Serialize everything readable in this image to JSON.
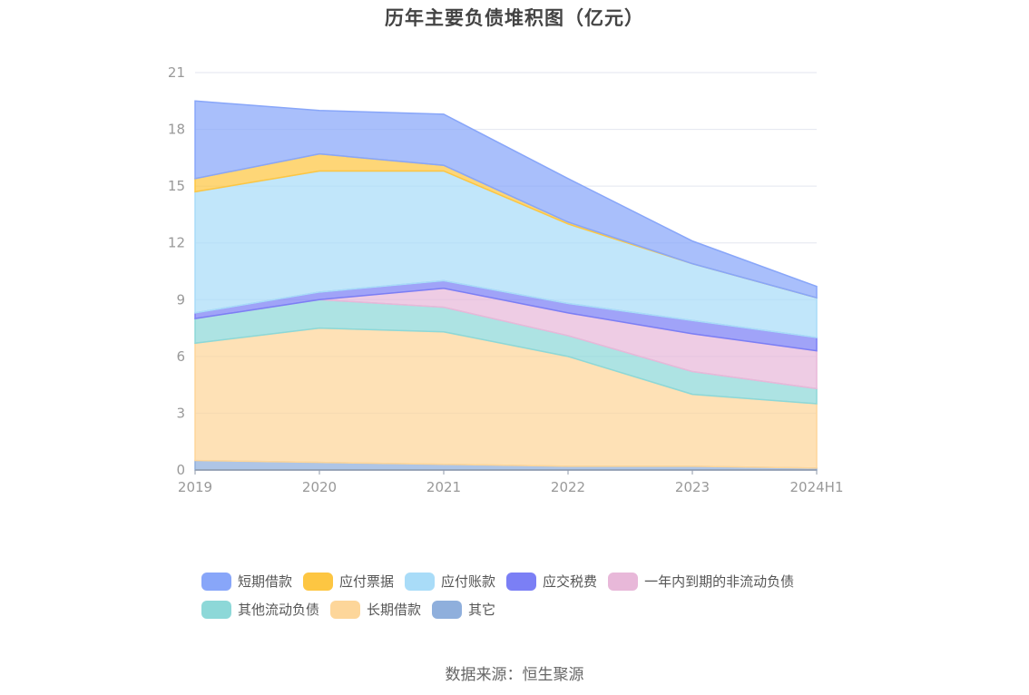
{
  "chart_data": {
    "type": "area",
    "stacked": true,
    "title": "历年主要负债堆积图（亿元）",
    "x": [
      "2019",
      "2020",
      "2021",
      "2022",
      "2023",
      "2024H1"
    ],
    "ylim": [
      0,
      21
    ],
    "yticks": [
      0,
      3,
      6,
      9,
      12,
      15,
      18,
      21
    ],
    "grid": true,
    "legend_position": "bottom",
    "series": [
      {
        "name": "其它",
        "color": "#8fafdc",
        "values": [
          0.5,
          0.4,
          0.3,
          0.2,
          0.2,
          0.1
        ]
      },
      {
        "name": "长期借款",
        "color": "#fdd69a",
        "values": [
          6.2,
          7.1,
          7.0,
          5.8,
          3.8,
          3.4
        ]
      },
      {
        "name": "其他流动负债",
        "color": "#8dd8d8",
        "values": [
          1.3,
          1.5,
          1.3,
          1.1,
          1.2,
          0.8
        ]
      },
      {
        "name": "一年内到期的非流动负债",
        "color": "#e8b8d9",
        "values": [
          0.0,
          0.0,
          1.0,
          1.2,
          2.0,
          2.0
        ]
      },
      {
        "name": "应交税费",
        "color": "#7b7ff5",
        "values": [
          0.3,
          0.4,
          0.4,
          0.5,
          0.7,
          0.7
        ]
      },
      {
        "name": "应付账款",
        "color": "#a9dcf8",
        "values": [
          6.4,
          6.4,
          5.8,
          4.2,
          3.0,
          2.1
        ]
      },
      {
        "name": "应付票据",
        "color": "#fdc642",
        "values": [
          0.7,
          0.9,
          0.3,
          0.1,
          0.0,
          0.0
        ]
      },
      {
        "name": "短期借款",
        "color": "#88a6f9",
        "values": [
          4.1,
          2.3,
          2.7,
          2.3,
          1.2,
          0.6
        ]
      }
    ]
  },
  "legend_rows": [
    [
      {
        "label": "短期借款",
        "color": "#88a6f9"
      },
      {
        "label": "应付票据",
        "color": "#fdc642"
      },
      {
        "label": "应付账款",
        "color": "#a9dcf8"
      },
      {
        "label": "应交税费",
        "color": "#7b7ff5"
      },
      {
        "label": "一年内到期的非流动负债",
        "color": "#e8b8d9"
      }
    ],
    [
      {
        "label": "其他流动负债",
        "color": "#8dd8d8"
      },
      {
        "label": "长期借款",
        "color": "#fdd69a"
      },
      {
        "label": "其它",
        "color": "#8fafdc"
      }
    ]
  ],
  "source": "数据来源：恒生聚源"
}
